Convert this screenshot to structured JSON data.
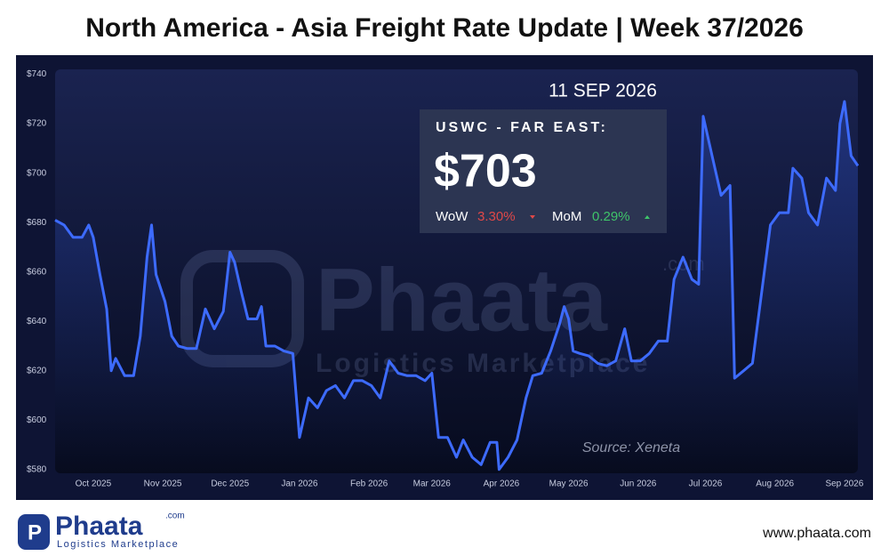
{
  "chart_data": {
    "type": "line",
    "title": "North America - Asia Freight Rate Update | Week 37/2026",
    "date": "11 SEP 2026",
    "card": {
      "route": "USWC - FAR EAST:",
      "price": "$703",
      "wow_label": "WoW",
      "wow": "3.30%",
      "mom_label": "MoM",
      "mom": "0.29%"
    },
    "source": "Source: Xeneta",
    "watermark": {
      "name": "Phaata",
      "tagline": "Logistics Marketplace",
      "domain": ".com"
    },
    "footer": {
      "logo": "Phaata",
      "tagline": "Logistics Marketplace",
      "domain": ".com",
      "url": "www.phaata.com"
    },
    "x": [
      -17,
      -13,
      -9,
      -5,
      -2,
      0,
      3,
      6,
      8,
      10,
      14,
      18,
      21,
      24,
      26,
      28,
      32,
      35,
      38,
      42,
      46,
      50,
      54,
      58,
      61,
      63,
      66,
      69,
      73,
      75,
      77,
      81,
      85,
      89,
      92,
      96,
      100,
      104,
      108,
      112,
      116,
      120,
      124,
      128,
      132,
      136,
      140,
      144,
      148,
      151,
      154,
      158,
      162,
      165,
      169,
      173,
      177,
      180,
      181,
      185,
      189,
      193,
      196,
      200,
      204,
      208,
      210,
      212,
      214,
      217,
      221,
      225,
      229,
      233,
      237,
      240,
      244,
      248,
      252,
      256,
      259,
      263,
      267,
      270,
      272,
      276,
      280,
      284,
      286,
      290,
      294,
      298,
      302,
      306,
      310,
      312,
      316,
      319,
      323,
      327,
      331,
      333,
      335,
      338,
      341
    ],
    "series": [
      {
        "name": "USWC - FAR EAST",
        "color": "#3d6bff",
        "values": [
          681,
          679,
          674,
          674,
          679,
          674,
          659,
          645,
          620,
          625,
          618,
          618,
          634,
          666,
          679,
          659,
          648,
          634,
          630,
          629,
          629,
          645,
          637,
          644,
          668,
          664,
          652,
          641,
          641,
          646,
          630,
          630,
          628,
          627,
          593,
          609,
          605,
          612,
          614,
          609,
          616,
          616,
          614,
          609,
          624,
          619,
          618,
          618,
          616,
          619,
          593,
          593,
          585,
          592,
          585,
          582,
          591,
          591,
          580,
          585,
          592,
          609,
          618,
          619,
          628,
          639,
          646,
          641,
          628,
          627,
          626,
          623,
          622,
          624,
          637,
          624,
          624,
          627,
          632,
          632,
          657,
          666,
          657,
          655,
          723,
          707,
          691,
          695,
          617,
          620,
          623,
          651,
          679,
          684,
          684,
          702,
          698,
          684,
          679,
          698,
          693,
          720,
          729,
          707,
          703
        ]
      }
    ],
    "xlim": [
      -17,
      341
    ],
    "xticks": [
      {
        "value": 0,
        "label": "Oct 2025"
      },
      {
        "value": 31,
        "label": "Nov 2025"
      },
      {
        "value": 61,
        "label": "Dec 2025"
      },
      {
        "value": 92,
        "label": "Jan 2026"
      },
      {
        "value": 123,
        "label": "Feb 2026"
      },
      {
        "value": 151,
        "label": "Mar 2026"
      },
      {
        "value": 182,
        "label": "Apr 2026"
      },
      {
        "value": 212,
        "label": "May 2026"
      },
      {
        "value": 243,
        "label": "Jun 2026"
      },
      {
        "value": 273,
        "label": "Jul 2026"
      },
      {
        "value": 304,
        "label": "Aug 2026"
      },
      {
        "value": 335,
        "label": "Sep 2026"
      }
    ],
    "ylim": [
      578.5,
      742
    ],
    "yticks": [
      {
        "value": 580,
        "label": "$580"
      },
      {
        "value": 600,
        "label": "$600"
      },
      {
        "value": 620,
        "label": "$620"
      },
      {
        "value": 640,
        "label": "$640"
      },
      {
        "value": 660,
        "label": "$660"
      },
      {
        "value": 680,
        "label": "$680"
      },
      {
        "value": 700,
        "label": "$700"
      },
      {
        "value": 720,
        "label": "$720"
      },
      {
        "value": 740,
        "label": "$740"
      }
    ]
  }
}
